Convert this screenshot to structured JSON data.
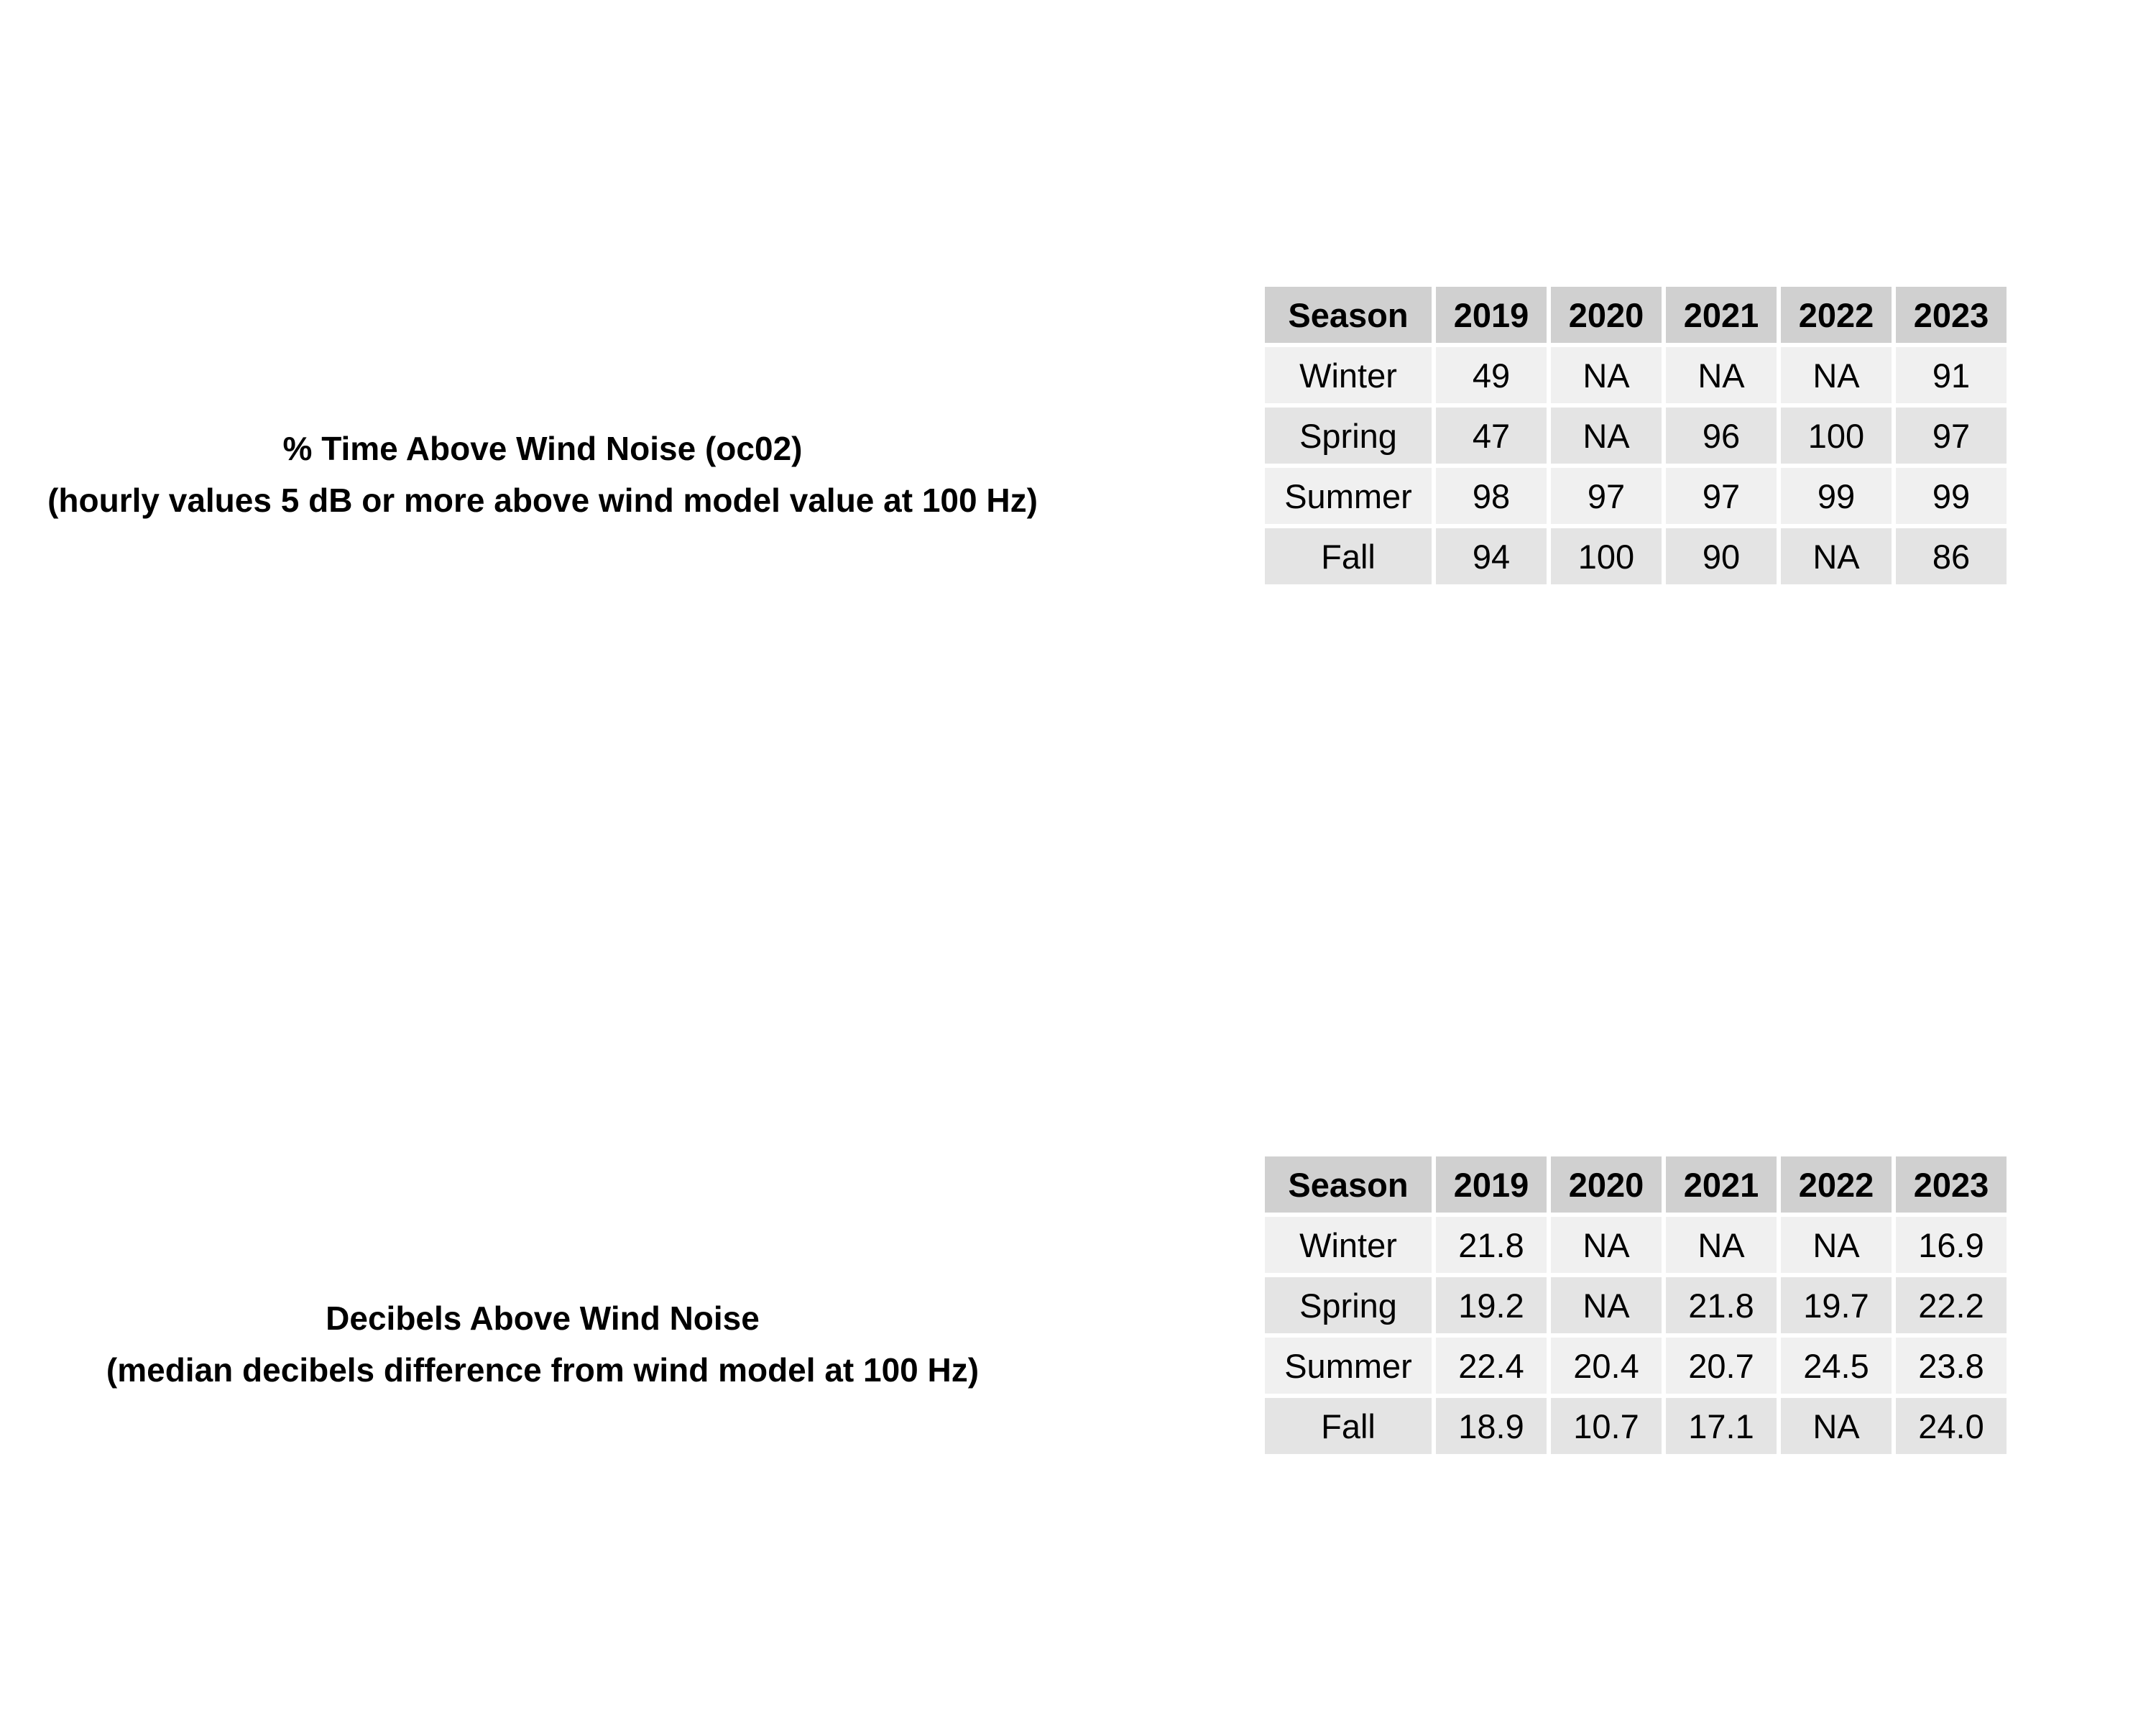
{
  "chart_data": [
    {
      "type": "table",
      "title": "% Time Above Wind Noise (oc02)",
      "subtitle": "(hourly values 5 dB or more above wind model value at 100 Hz)",
      "columns": [
        "Season",
        "2019",
        "2020",
        "2021",
        "2022",
        "2023"
      ],
      "rows": [
        [
          "Winter",
          "49",
          "NA",
          "NA",
          "NA",
          "91"
        ],
        [
          "Spring",
          "47",
          "NA",
          "96",
          "100",
          "97"
        ],
        [
          "Summer",
          "98",
          "97",
          "97",
          "99",
          "99"
        ],
        [
          "Fall",
          "94",
          "100",
          "90",
          "NA",
          "86"
        ]
      ],
      "colors": {
        "header": "#d0d0d0",
        "row_light": "#f0f0f0",
        "row_dark": "#e4e4e4"
      }
    },
    {
      "type": "table",
      "title": "Decibels Above Wind Noise",
      "subtitle": "(median decibels difference from wind model at 100 Hz)",
      "columns": [
        "Season",
        "2019",
        "2020",
        "2021",
        "2022",
        "2023"
      ],
      "rows": [
        [
          "Winter",
          "21.8",
          "NA",
          "NA",
          "NA",
          "16.9"
        ],
        [
          "Spring",
          "19.2",
          "NA",
          "21.8",
          "19.7",
          "22.2"
        ],
        [
          "Summer",
          "22.4",
          "20.4",
          "20.7",
          "24.5",
          "23.8"
        ],
        [
          "Fall",
          "18.9",
          "10.7",
          "17.1",
          "NA",
          "24.0"
        ]
      ],
      "colors": {
        "header": "#d0d0d0",
        "row_light": "#f0f0f0",
        "row_dark": "#e4e4e4"
      }
    }
  ]
}
